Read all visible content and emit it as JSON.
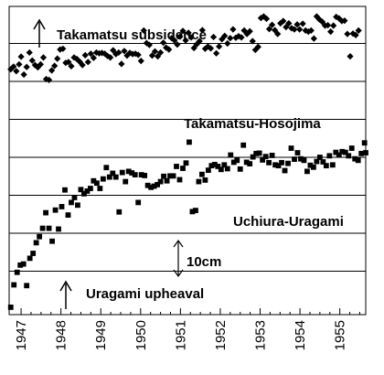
{
  "chart_data": {
    "type": "scatter",
    "title": "",
    "xlabel": "",
    "ylabel": "",
    "x_ticks": [
      "1947",
      "1948",
      "1949",
      "1950",
      "1951",
      "1952",
      "1953",
      "1954",
      "1955"
    ],
    "x_tick_values": [
      1947,
      1948,
      1949,
      1950,
      1951,
      1952,
      1953,
      1954,
      1955
    ],
    "xlim": [
      1946.7,
      1955.65
    ],
    "ylim_cm": [
      0,
      80
    ],
    "grid": "horizontal",
    "legend": "none",
    "scale_bar": {
      "label": "10cm",
      "length_cm": 10
    },
    "annotations": {
      "top_arrow_label": "Takamatsu subsidence",
      "bottom_arrow_label": "Uragami upheaval"
    },
    "series": [
      {
        "name": "Takamatsu-Hosojima",
        "marker": "diamond",
        "color": "#000000",
        "points": [
          [
            1946.74,
            63.2
          ],
          [
            1946.81,
            63.9
          ],
          [
            1946.88,
            62.7
          ],
          [
            1946.95,
            64.5
          ],
          [
            1947.0,
            66.5
          ],
          [
            1947.07,
            61.8
          ],
          [
            1947.14,
            63.8
          ],
          [
            1947.21,
            67.6
          ],
          [
            1947.28,
            65.5
          ],
          [
            1947.35,
            64.3
          ],
          [
            1947.42,
            63.7
          ],
          [
            1947.49,
            64.5
          ],
          [
            1947.56,
            66.3
          ],
          [
            1947.63,
            60.6
          ],
          [
            1947.7,
            60.4
          ],
          [
            1947.77,
            62.9
          ],
          [
            1947.84,
            64.1
          ],
          [
            1947.91,
            66.0
          ],
          [
            1947.98,
            68.4
          ],
          [
            1948.05,
            68.6
          ],
          [
            1948.12,
            64.9
          ],
          [
            1948.19,
            65.1
          ],
          [
            1948.26,
            64.0
          ],
          [
            1948.33,
            66.3
          ],
          [
            1948.4,
            65.9
          ],
          [
            1948.47,
            65.2
          ],
          [
            1948.54,
            64.3
          ],
          [
            1948.61,
            66.9
          ],
          [
            1948.68,
            65.1
          ],
          [
            1948.75,
            67.3
          ],
          [
            1948.82,
            66.2
          ],
          [
            1948.89,
            67.6
          ],
          [
            1948.96,
            67.4
          ],
          [
            1949.03,
            67.5
          ],
          [
            1949.1,
            67.3
          ],
          [
            1949.17,
            66.7
          ],
          [
            1949.24,
            66.3
          ],
          [
            1949.31,
            68.2
          ],
          [
            1949.38,
            67.2
          ],
          [
            1949.45,
            67.6
          ],
          [
            1949.52,
            64.6
          ],
          [
            1949.59,
            68.0
          ],
          [
            1949.66,
            66.8
          ],
          [
            1949.73,
            67.5
          ],
          [
            1949.8,
            67.2
          ],
          [
            1949.87,
            67.3
          ],
          [
            1949.94,
            67.0
          ],
          [
            1950.01,
            65.4
          ],
          [
            1950.08,
            73.4
          ],
          [
            1950.15,
            70.1
          ],
          [
            1950.22,
            69.6
          ],
          [
            1950.29,
            66.8
          ],
          [
            1950.36,
            67.9
          ],
          [
            1950.43,
            66.6
          ],
          [
            1950.5,
            67.6
          ],
          [
            1950.57,
            70.2
          ],
          [
            1950.64,
            68.9
          ],
          [
            1950.71,
            68.4
          ],
          [
            1950.78,
            71.4
          ],
          [
            1950.85,
            70.8
          ],
          [
            1950.92,
            69.7
          ],
          [
            1950.99,
            71.8
          ],
          [
            1951.06,
            73.3
          ],
          [
            1951.13,
            70.8
          ],
          [
            1951.2,
            72.8
          ],
          [
            1951.27,
            71.6
          ],
          [
            1951.34,
            68.8
          ],
          [
            1951.41,
            69.8
          ],
          [
            1951.48,
            70.6
          ],
          [
            1951.55,
            73.5
          ],
          [
            1951.62,
            68.6
          ],
          [
            1951.69,
            69.2
          ],
          [
            1951.76,
            68.7
          ],
          [
            1951.83,
            71.7
          ],
          [
            1951.9,
            67.4
          ],
          [
            1951.97,
            69.2
          ],
          [
            1952.04,
            71.1
          ],
          [
            1952.11,
            72.0
          ],
          [
            1952.18,
            70.0
          ],
          [
            1952.25,
            71.4
          ],
          [
            1952.32,
            73.7
          ],
          [
            1952.39,
            71.5
          ],
          [
            1952.46,
            71.9
          ],
          [
            1952.53,
            71.6
          ],
          [
            1952.6,
            73.4
          ],
          [
            1952.67,
            72.5
          ],
          [
            1952.74,
            73.2
          ],
          [
            1952.81,
            70.6
          ],
          [
            1952.88,
            68.3
          ],
          [
            1952.95,
            69.1
          ],
          [
            1953.02,
            76.7
          ],
          [
            1953.09,
            77.1
          ],
          [
            1953.16,
            76.5
          ],
          [
            1953.23,
            73.8
          ],
          [
            1953.3,
            74.9
          ],
          [
            1953.37,
            73.5
          ],
          [
            1953.44,
            72.5
          ],
          [
            1953.51,
            75.3
          ],
          [
            1953.58,
            75.9
          ],
          [
            1953.65,
            74.3
          ],
          [
            1953.72,
            75.3
          ],
          [
            1953.79,
            74.0
          ],
          [
            1953.86,
            73.7
          ],
          [
            1953.93,
            75.0
          ],
          [
            1953.99,
            73.7
          ],
          [
            1954.07,
            75.2
          ],
          [
            1954.14,
            73.4
          ],
          [
            1954.21,
            73.1
          ],
          [
            1954.28,
            73.4
          ],
          [
            1954.35,
            71.3
          ],
          [
            1954.42,
            77.1
          ],
          [
            1954.49,
            76.3
          ],
          [
            1954.56,
            75.7
          ],
          [
            1954.63,
            74.7
          ],
          [
            1954.7,
            74.8
          ],
          [
            1954.77,
            73.1
          ],
          [
            1954.84,
            74.7
          ],
          [
            1954.91,
            77.0
          ],
          [
            1954.98,
            76.6
          ],
          [
            1955.05,
            75.9
          ],
          [
            1955.12,
            76.0
          ],
          [
            1955.19,
            72.5
          ],
          [
            1955.26,
            66.6
          ],
          [
            1955.33,
            72.6
          ],
          [
            1955.4,
            72.2
          ],
          [
            1955.47,
            73.4
          ]
        ]
      },
      {
        "name": "Uchiura-Uragami",
        "marker": "square",
        "color": "#000000",
        "points": [
          [
            1946.74,
            0.5
          ],
          [
            1946.82,
            6.4
          ],
          [
            1946.9,
            9.7
          ],
          [
            1946.98,
            11.6
          ],
          [
            1947.06,
            11.9
          ],
          [
            1947.14,
            6.2
          ],
          [
            1947.22,
            13.4
          ],
          [
            1947.3,
            14.7
          ],
          [
            1947.38,
            17.5
          ],
          [
            1947.46,
            19.1
          ],
          [
            1947.54,
            21.3
          ],
          [
            1947.62,
            25.4
          ],
          [
            1947.7,
            21.3
          ],
          [
            1947.78,
            17.9
          ],
          [
            1947.86,
            26.1
          ],
          [
            1947.94,
            21.1
          ],
          [
            1948.02,
            27.0
          ],
          [
            1948.1,
            31.4
          ],
          [
            1948.18,
            24.8
          ],
          [
            1948.26,
            28.1
          ],
          [
            1948.34,
            29.4
          ],
          [
            1948.42,
            27.4
          ],
          [
            1948.5,
            31.5
          ],
          [
            1948.58,
            30.4
          ],
          [
            1948.66,
            31.1
          ],
          [
            1948.74,
            31.8
          ],
          [
            1948.82,
            33.8
          ],
          [
            1948.9,
            33.2
          ],
          [
            1948.98,
            31.8
          ],
          [
            1949.06,
            34.3
          ],
          [
            1949.14,
            37.3
          ],
          [
            1949.22,
            34.8
          ],
          [
            1949.3,
            35.8
          ],
          [
            1949.38,
            34.8
          ],
          [
            1949.46,
            25.6
          ],
          [
            1949.54,
            36.0
          ],
          [
            1949.62,
            33.6
          ],
          [
            1949.7,
            36.3
          ],
          [
            1949.78,
            35.9
          ],
          [
            1949.86,
            35.4
          ],
          [
            1949.94,
            28.1
          ],
          [
            1950.02,
            35.4
          ],
          [
            1950.1,
            35.2
          ],
          [
            1950.18,
            32.6
          ],
          [
            1950.26,
            32.1
          ],
          [
            1950.34,
            32.4
          ],
          [
            1950.42,
            32.8
          ],
          [
            1950.5,
            33.6
          ],
          [
            1950.58,
            35.0
          ],
          [
            1950.66,
            33.8
          ],
          [
            1950.74,
            35.1
          ],
          [
            1950.82,
            35.1
          ],
          [
            1950.9,
            37.6
          ],
          [
            1950.98,
            34.1
          ],
          [
            1951.06,
            37.1
          ],
          [
            1951.14,
            38.5
          ],
          [
            1951.22,
            44.0
          ],
          [
            1951.3,
            25.7
          ],
          [
            1951.38,
            26.0
          ],
          [
            1951.46,
            33.6
          ],
          [
            1951.54,
            35.5
          ],
          [
            1951.62,
            34.0
          ],
          [
            1951.7,
            36.6
          ],
          [
            1951.78,
            37.8
          ],
          [
            1951.86,
            38.1
          ],
          [
            1951.94,
            37.6
          ],
          [
            1952.02,
            36.8
          ],
          [
            1952.1,
            38.0
          ],
          [
            1952.18,
            37.0
          ],
          [
            1952.26,
            40.6
          ],
          [
            1952.34,
            38.7
          ],
          [
            1952.42,
            39.2
          ],
          [
            1952.5,
            36.9
          ],
          [
            1952.58,
            43.2
          ],
          [
            1952.66,
            38.7
          ],
          [
            1952.74,
            38.3
          ],
          [
            1952.82,
            40.1
          ],
          [
            1952.9,
            41.0
          ],
          [
            1952.98,
            41.1
          ],
          [
            1953.06,
            39.3
          ],
          [
            1953.14,
            40.2
          ],
          [
            1953.22,
            38.6
          ],
          [
            1953.3,
            40.5
          ],
          [
            1953.38,
            38.0
          ],
          [
            1953.46,
            37.8
          ],
          [
            1953.54,
            38.6
          ],
          [
            1953.62,
            36.5
          ],
          [
            1953.7,
            38.4
          ],
          [
            1953.78,
            42.4
          ],
          [
            1953.86,
            39.5
          ],
          [
            1953.94,
            41.2
          ],
          [
            1954.02,
            39.6
          ],
          [
            1954.1,
            39.2
          ],
          [
            1954.18,
            36.3
          ],
          [
            1954.26,
            37.9
          ],
          [
            1954.34,
            37.4
          ],
          [
            1954.42,
            38.9
          ],
          [
            1954.5,
            40.0
          ],
          [
            1954.58,
            38.8
          ],
          [
            1954.66,
            37.8
          ],
          [
            1954.74,
            40.4
          ],
          [
            1954.82,
            38.0
          ],
          [
            1954.9,
            41.3
          ],
          [
            1954.98,
            40.6
          ],
          [
            1955.06,
            41.5
          ],
          [
            1955.14,
            41.3
          ],
          [
            1955.22,
            40.4
          ],
          [
            1955.3,
            42.4
          ],
          [
            1955.38,
            39.6
          ],
          [
            1955.46,
            39.2
          ],
          [
            1955.54,
            41.0
          ],
          [
            1955.62,
            43.8
          ],
          [
            1955.65,
            41.2
          ]
        ]
      }
    ]
  }
}
